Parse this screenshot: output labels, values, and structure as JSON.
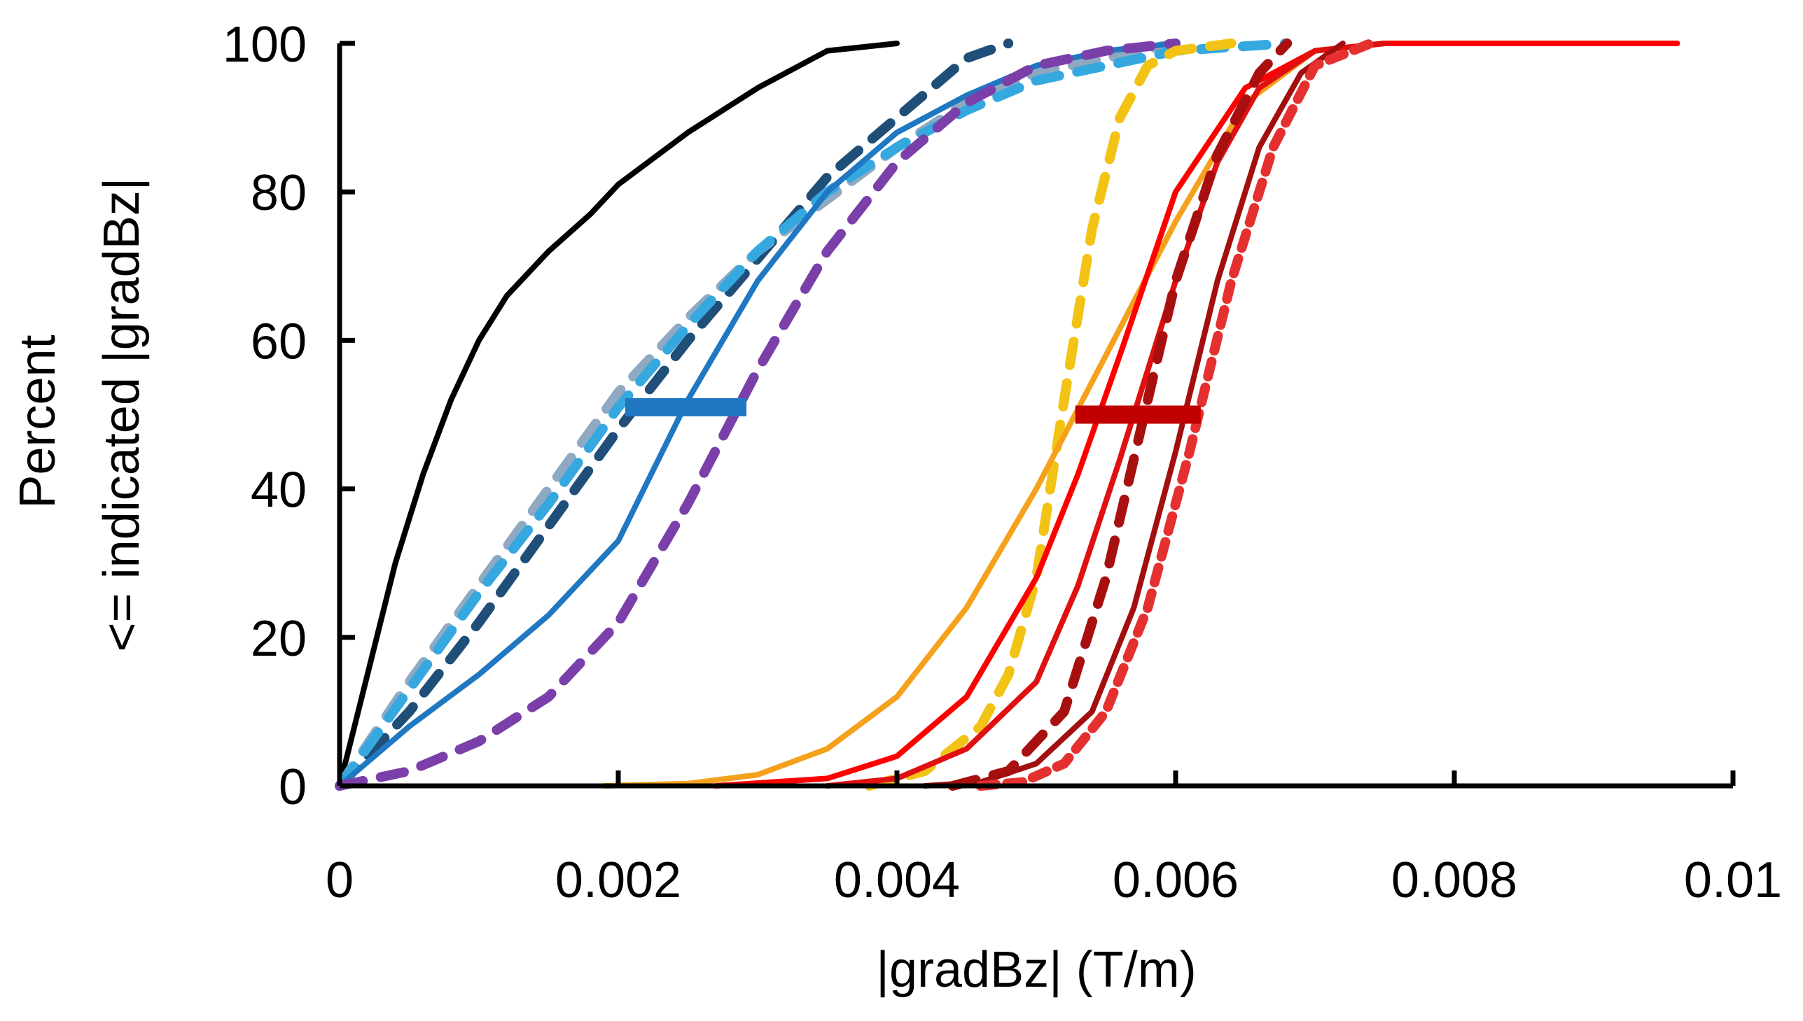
{
  "chart_data": {
    "type": "line",
    "title": "",
    "xlabel": "|gradBz|  (T/m)",
    "ylabel_lines": [
      "Percent",
      "<= indicated |gradBz|"
    ],
    "xlim": [
      0,
      0.01
    ],
    "ylim": [
      0,
      100
    ],
    "x_ticks": [
      0,
      0.002,
      0.004,
      0.006,
      0.008,
      0.01
    ],
    "x_tick_labels": [
      "0",
      "0.002",
      "0.004",
      "0.006",
      "0.008",
      "0.01"
    ],
    "y_ticks": [
      0,
      20,
      40,
      60,
      80,
      100
    ],
    "y_tick_labels": [
      "0",
      "20",
      "40",
      "60",
      "80",
      "100"
    ],
    "grid": false,
    "legend": "none",
    "series": [
      {
        "name": "black-solid",
        "color": "#000000",
        "dash": "solid",
        "points": [
          [
            0,
            0
          ],
          [
            0.0002,
            15
          ],
          [
            0.0004,
            30
          ],
          [
            0.0006,
            42
          ],
          [
            0.0008,
            52
          ],
          [
            0.001,
            60
          ],
          [
            0.0012,
            66
          ],
          [
            0.0015,
            72
          ],
          [
            0.0018,
            77
          ],
          [
            0.002,
            81
          ],
          [
            0.0025,
            88
          ],
          [
            0.003,
            94
          ],
          [
            0.0035,
            99
          ],
          [
            0.004,
            100
          ]
        ]
      },
      {
        "name": "navy-dashed",
        "color": "#1F4E79",
        "dash": "dashed",
        "points": [
          [
            0,
            0
          ],
          [
            0.0005,
            10
          ],
          [
            0.001,
            22
          ],
          [
            0.0015,
            35
          ],
          [
            0.002,
            48
          ],
          [
            0.0025,
            60
          ],
          [
            0.003,
            71
          ],
          [
            0.0035,
            82
          ],
          [
            0.004,
            90
          ],
          [
            0.0045,
            98
          ],
          [
            0.0048,
            100
          ]
        ]
      },
      {
        "name": "gray-dashed",
        "color": "#8EA9C1",
        "dash": "dashed",
        "points": [
          [
            0,
            0
          ],
          [
            0.0005,
            14
          ],
          [
            0.001,
            27
          ],
          [
            0.0015,
            40
          ],
          [
            0.002,
            53
          ],
          [
            0.0025,
            63
          ],
          [
            0.003,
            72
          ],
          [
            0.0035,
            79
          ],
          [
            0.004,
            86
          ],
          [
            0.0045,
            92
          ],
          [
            0.005,
            96
          ],
          [
            0.0055,
            98
          ],
          [
            0.006,
            100
          ]
        ]
      },
      {
        "name": "lightblue-dashed",
        "color": "#35A8DF",
        "dash": "dashed",
        "points": [
          [
            0,
            0
          ],
          [
            0.0005,
            13
          ],
          [
            0.001,
            26
          ],
          [
            0.0015,
            38
          ],
          [
            0.002,
            51
          ],
          [
            0.0025,
            62
          ],
          [
            0.003,
            72
          ],
          [
            0.0035,
            80
          ],
          [
            0.004,
            86
          ],
          [
            0.0045,
            91
          ],
          [
            0.005,
            95
          ],
          [
            0.006,
            99
          ],
          [
            0.0068,
            100
          ]
        ]
      },
      {
        "name": "blue-solid",
        "color": "#1F78C1",
        "dash": "solid",
        "points": [
          [
            0,
            0
          ],
          [
            0.0005,
            8
          ],
          [
            0.001,
            15
          ],
          [
            0.0015,
            23
          ],
          [
            0.002,
            33
          ],
          [
            0.0025,
            52
          ],
          [
            0.003,
            68
          ],
          [
            0.0035,
            80
          ],
          [
            0.004,
            88
          ],
          [
            0.0045,
            93
          ],
          [
            0.005,
            97
          ],
          [
            0.0055,
            99
          ],
          [
            0.006,
            100
          ]
        ]
      },
      {
        "name": "purple-dashed",
        "color": "#7B3FA9",
        "dash": "dashed",
        "points": [
          [
            0,
            0
          ],
          [
            0.0005,
            2
          ],
          [
            0.001,
            6
          ],
          [
            0.0015,
            12
          ],
          [
            0.002,
            22
          ],
          [
            0.0025,
            38
          ],
          [
            0.003,
            56
          ],
          [
            0.0035,
            72
          ],
          [
            0.004,
            84
          ],
          [
            0.0045,
            92
          ],
          [
            0.005,
            97
          ],
          [
            0.0055,
            99
          ],
          [
            0.006,
            100
          ]
        ]
      },
      {
        "name": "yellow-dashed",
        "color": "#F2C314",
        "dash": "dashed",
        "points": [
          [
            0.0038,
            0
          ],
          [
            0.0042,
            2
          ],
          [
            0.0046,
            8
          ],
          [
            0.0048,
            15
          ],
          [
            0.005,
            28
          ],
          [
            0.0052,
            52
          ],
          [
            0.0054,
            75
          ],
          [
            0.0056,
            90
          ],
          [
            0.0058,
            97
          ],
          [
            0.006,
            99
          ],
          [
            0.0064,
            100
          ]
        ]
      },
      {
        "name": "orange-solid",
        "color": "#F5A11C",
        "dash": "solid",
        "points": [
          [
            0.0019,
            0
          ],
          [
            0.0025,
            0.3
          ],
          [
            0.003,
            1.5
          ],
          [
            0.0035,
            5
          ],
          [
            0.004,
            12
          ],
          [
            0.0045,
            24
          ],
          [
            0.005,
            40
          ],
          [
            0.0055,
            58
          ],
          [
            0.006,
            76
          ],
          [
            0.0065,
            92
          ],
          [
            0.007,
            99
          ],
          [
            0.0075,
            100
          ]
        ]
      },
      {
        "name": "red-solid-1",
        "color": "#FF0000",
        "dash": "solid",
        "points": [
          [
            0.0027,
            0
          ],
          [
            0.0035,
            1
          ],
          [
            0.004,
            4
          ],
          [
            0.0045,
            12
          ],
          [
            0.005,
            28
          ],
          [
            0.0053,
            42
          ],
          [
            0.0056,
            58
          ],
          [
            0.006,
            80
          ],
          [
            0.0065,
            94
          ],
          [
            0.007,
            99
          ],
          [
            0.0075,
            100
          ],
          [
            0.0096,
            100
          ]
        ]
      },
      {
        "name": "red-solid-2",
        "color": "#E01010",
        "dash": "solid",
        "points": [
          [
            0.0035,
            0
          ],
          [
            0.004,
            1
          ],
          [
            0.0045,
            5
          ],
          [
            0.005,
            14
          ],
          [
            0.0053,
            27
          ],
          [
            0.0056,
            44
          ],
          [
            0.006,
            68
          ],
          [
            0.0063,
            84
          ],
          [
            0.0066,
            94
          ],
          [
            0.007,
            99
          ],
          [
            0.0075,
            100
          ]
        ]
      },
      {
        "name": "darkred-dashed",
        "color": "#A8100F",
        "dash": "dashed",
        "points": [
          [
            0.0044,
            0
          ],
          [
            0.0048,
            2
          ],
          [
            0.0052,
            10
          ],
          [
            0.0055,
            28
          ],
          [
            0.0058,
            52
          ],
          [
            0.006,
            68
          ],
          [
            0.0063,
            85
          ],
          [
            0.0066,
            96
          ],
          [
            0.0068,
            100
          ]
        ]
      },
      {
        "name": "darkred-solid",
        "color": "#A30E0E",
        "dash": "solid",
        "points": [
          [
            0.0042,
            0
          ],
          [
            0.0046,
            0.5
          ],
          [
            0.005,
            3
          ],
          [
            0.0054,
            10
          ],
          [
            0.0057,
            24
          ],
          [
            0.006,
            45
          ],
          [
            0.0063,
            68
          ],
          [
            0.0066,
            86
          ],
          [
            0.0069,
            96
          ],
          [
            0.0072,
            100
          ]
        ]
      },
      {
        "name": "red-dotted",
        "color": "#E53030",
        "dash": "dotted",
        "points": [
          [
            0.0046,
            0
          ],
          [
            0.0049,
            0.5
          ],
          [
            0.0052,
            3
          ],
          [
            0.0055,
            10
          ],
          [
            0.0058,
            24
          ],
          [
            0.0061,
            45
          ],
          [
            0.0064,
            68
          ],
          [
            0.0067,
            86
          ],
          [
            0.007,
            97
          ],
          [
            0.0074,
            100
          ]
        ]
      }
    ],
    "markers": [
      {
        "name": "blue-median-bar",
        "color": "#1F78C1",
        "x_range": [
          0.00205,
          0.00292
        ],
        "y": 51
      },
      {
        "name": "red-median-bar",
        "color": "#C00000",
        "x_range": [
          0.00528,
          0.00618
        ],
        "y": 50
      }
    ]
  }
}
